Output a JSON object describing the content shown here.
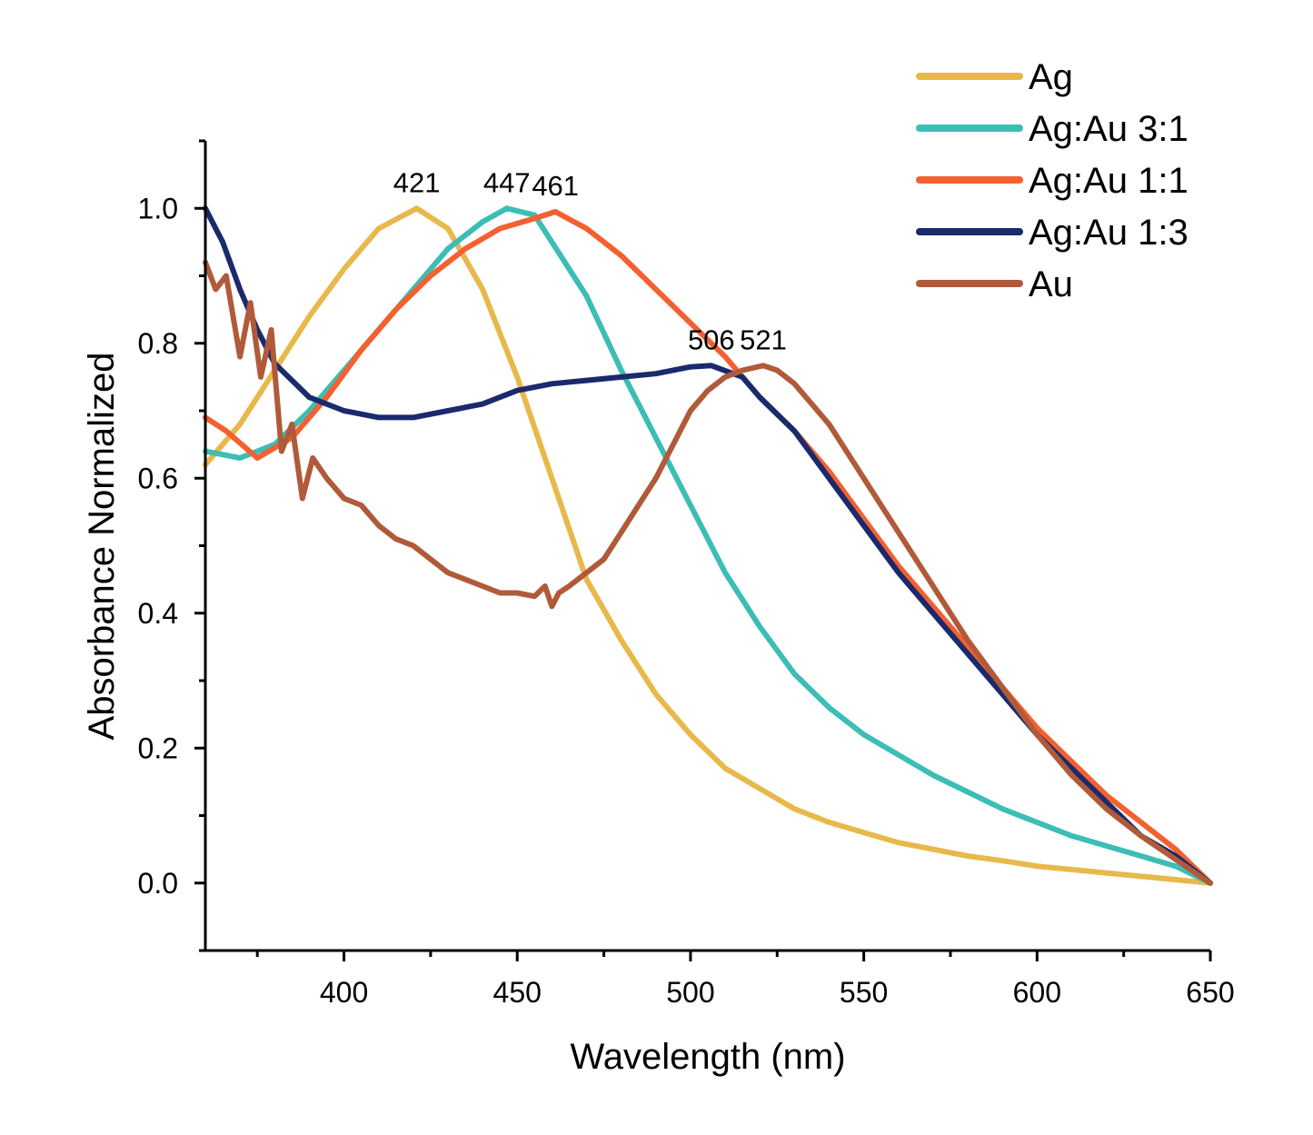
{
  "chart_data": {
    "type": "line",
    "title": "",
    "xlabel": "Wavelength (nm)",
    "ylabel": "Absorbance Normalized",
    "xlim": [
      360,
      650
    ],
    "ylim": [
      -0.1,
      1.1
    ],
    "x_ticks": [
      400,
      450,
      500,
      550,
      600,
      650
    ],
    "y_ticks": [
      0.0,
      0.2,
      0.4,
      0.6,
      0.8,
      1.0
    ],
    "x_tick_labels": [
      "400",
      "450",
      "500",
      "550",
      "600",
      "650"
    ],
    "y_tick_labels": [
      "0.0",
      "0.2",
      "0.4",
      "0.6",
      "0.8",
      "1.0"
    ],
    "grid": false,
    "legend_position": "top-right",
    "series": [
      {
        "name": "Ag",
        "color": "#E8B84B",
        "x": [
          360,
          370,
          380,
          390,
          400,
          410,
          421,
          430,
          440,
          450,
          460,
          470,
          480,
          490,
          500,
          510,
          520,
          530,
          540,
          550,
          560,
          570,
          580,
          590,
          600,
          610,
          620,
          630,
          640,
          650
        ],
        "y": [
          0.62,
          0.68,
          0.76,
          0.84,
          0.91,
          0.97,
          1.0,
          0.97,
          0.88,
          0.75,
          0.6,
          0.45,
          0.36,
          0.28,
          0.22,
          0.17,
          0.14,
          0.11,
          0.09,
          0.075,
          0.06,
          0.05,
          0.04,
          0.033,
          0.025,
          0.02,
          0.015,
          0.01,
          0.005,
          0.0
        ]
      },
      {
        "name": "Ag:Au 3:1",
        "color": "#3CBDB5",
        "x": [
          360,
          370,
          380,
          390,
          400,
          410,
          420,
          430,
          440,
          447,
          455,
          460,
          470,
          480,
          490,
          500,
          510,
          520,
          530,
          540,
          550,
          560,
          570,
          580,
          590,
          600,
          610,
          620,
          630,
          640,
          650
        ],
        "y": [
          0.64,
          0.63,
          0.65,
          0.7,
          0.76,
          0.82,
          0.88,
          0.94,
          0.98,
          1.0,
          0.99,
          0.95,
          0.87,
          0.76,
          0.66,
          0.56,
          0.46,
          0.38,
          0.31,
          0.26,
          0.22,
          0.19,
          0.16,
          0.135,
          0.11,
          0.09,
          0.07,
          0.055,
          0.04,
          0.025,
          0.0
        ]
      },
      {
        "name": "Ag:Au 1:1",
        "color": "#F4602F",
        "x": [
          360,
          366,
          375,
          385,
          395,
          405,
          415,
          425,
          435,
          445,
          455,
          461,
          470,
          480,
          490,
          500,
          510,
          520,
          530,
          540,
          550,
          560,
          570,
          580,
          590,
          600,
          610,
          620,
          630,
          640,
          650
        ],
        "y": [
          0.69,
          0.67,
          0.63,
          0.66,
          0.72,
          0.79,
          0.85,
          0.9,
          0.94,
          0.97,
          0.985,
          0.995,
          0.97,
          0.93,
          0.88,
          0.83,
          0.78,
          0.72,
          0.67,
          0.61,
          0.54,
          0.47,
          0.41,
          0.35,
          0.29,
          0.23,
          0.18,
          0.13,
          0.09,
          0.05,
          0.0
        ]
      },
      {
        "name": "Ag:Au 1:3",
        "color": "#1A2A6C",
        "x": [
          360,
          365,
          370,
          375,
          380,
          390,
          400,
          410,
          420,
          430,
          440,
          450,
          460,
          470,
          480,
          490,
          500,
          506,
          515,
          520,
          530,
          540,
          550,
          560,
          570,
          580,
          590,
          600,
          610,
          620,
          630,
          640,
          650
        ],
        "y": [
          1.0,
          0.95,
          0.88,
          0.82,
          0.77,
          0.72,
          0.7,
          0.69,
          0.69,
          0.7,
          0.71,
          0.73,
          0.74,
          0.745,
          0.75,
          0.755,
          0.765,
          0.767,
          0.75,
          0.72,
          0.67,
          0.6,
          0.53,
          0.46,
          0.4,
          0.34,
          0.28,
          0.22,
          0.17,
          0.12,
          0.07,
          0.04,
          0.0
        ]
      },
      {
        "name": "Au",
        "color": "#B05A3A",
        "x": [
          360,
          363,
          366,
          370,
          373,
          376,
          379,
          382,
          385,
          388,
          391,
          395,
          400,
          405,
          410,
          415,
          420,
          425,
          430,
          435,
          440,
          445,
          450,
          455,
          458,
          460,
          462,
          465,
          470,
          475,
          480,
          485,
          490,
          495,
          500,
          505,
          510,
          515,
          521,
          525,
          530,
          535,
          540,
          545,
          550,
          555,
          560,
          570,
          580,
          590,
          600,
          610,
          620,
          630,
          640,
          650
        ],
        "y": [
          0.92,
          0.88,
          0.9,
          0.78,
          0.86,
          0.75,
          0.82,
          0.64,
          0.68,
          0.57,
          0.63,
          0.6,
          0.57,
          0.56,
          0.53,
          0.51,
          0.5,
          0.48,
          0.46,
          0.45,
          0.44,
          0.43,
          0.43,
          0.425,
          0.44,
          0.41,
          0.43,
          0.44,
          0.46,
          0.48,
          0.52,
          0.56,
          0.6,
          0.65,
          0.7,
          0.73,
          0.75,
          0.76,
          0.767,
          0.76,
          0.74,
          0.71,
          0.68,
          0.64,
          0.6,
          0.56,
          0.52,
          0.44,
          0.36,
          0.29,
          0.22,
          0.16,
          0.11,
          0.07,
          0.035,
          0.0
        ]
      }
    ],
    "annotations": [
      {
        "text": "421",
        "x": 421,
        "y": 1.0
      },
      {
        "text": "447",
        "x": 447,
        "y": 1.0
      },
      {
        "text": "461",
        "x": 461,
        "y": 0.995
      },
      {
        "text": "506",
        "x": 506,
        "y": 0.767
      },
      {
        "text": "521",
        "x": 521,
        "y": 0.767
      }
    ]
  }
}
